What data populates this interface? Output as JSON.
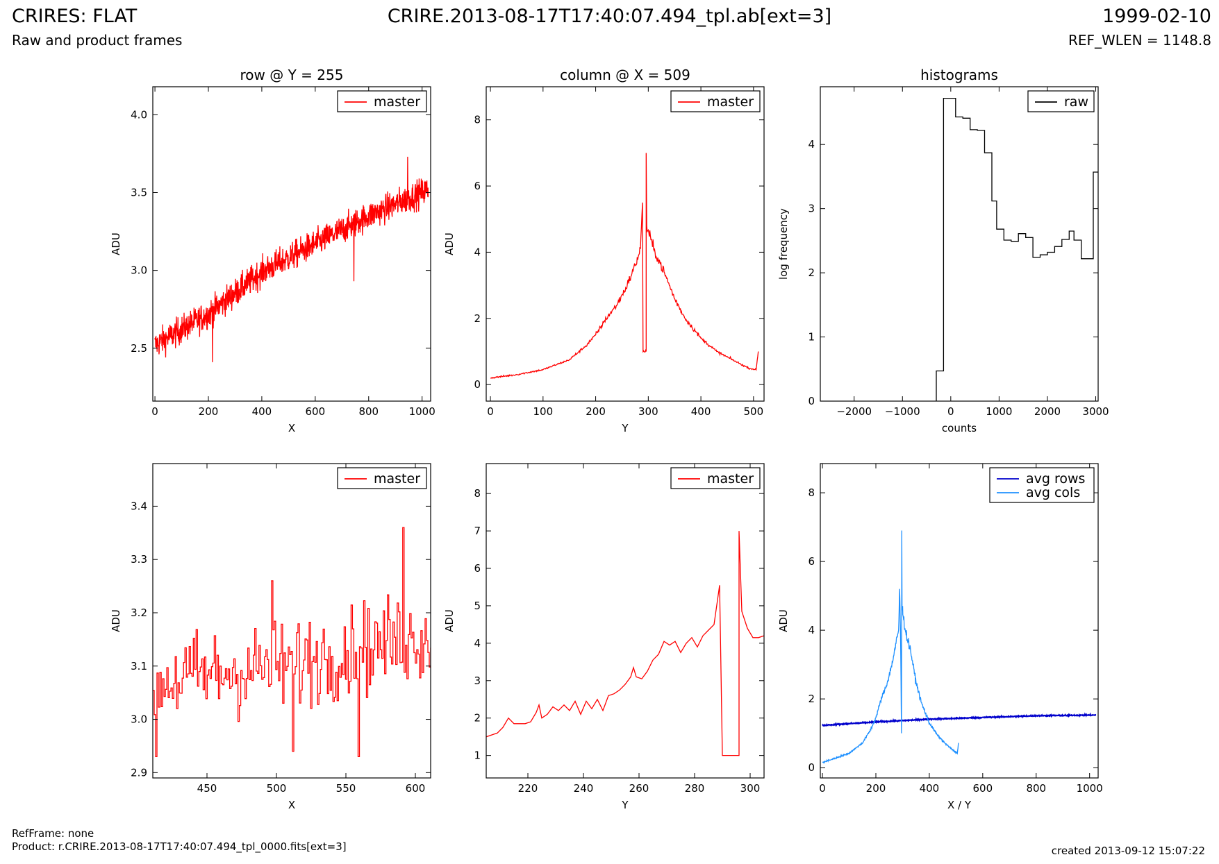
{
  "header": {
    "title_left": "CRIRES: FLAT",
    "title_center": "CRIRE.2013-08-17T17:40:07.494_tpl.ab[ext=3]",
    "title_right": "1999-02-10",
    "subtitle_left": "Raw and product frames",
    "subtitle_right": "REF_WLEN = 1148.8"
  },
  "footer": {
    "refframe": "RefFrame: none",
    "product": "Product: r.CRIRE.2013-08-17T17:40:07.494_tpl_0000.fits[ext=3]",
    "created": "created 2013-09-12 15:07:22"
  },
  "colors": {
    "red": "#ff0000",
    "black": "#000000",
    "blue": "#0000cc",
    "lightblue": "#1e90ff"
  },
  "chart_data": [
    {
      "id": "row",
      "type": "line",
      "title": "row @ Y = 255",
      "xlabel": "X",
      "ylabel": "ADU",
      "xlim": [
        -8,
        1032
      ],
      "ylim": [
        2.16,
        4.18
      ],
      "xticks": [
        0,
        200,
        400,
        600,
        800,
        1000
      ],
      "yticks": [
        2.5,
        3.0,
        3.5,
        4.0
      ],
      "ytick_labels": [
        "2.5",
        "3.0",
        "3.5",
        "4.0"
      ],
      "legend": "top-right",
      "series": [
        {
          "name": "master",
          "color": "#ff0000",
          "trend": [
            [
              0,
              2.52
            ],
            [
              200,
              2.72
            ],
            [
              400,
              2.99
            ],
            [
              600,
              3.17
            ],
            [
              800,
              3.35
            ],
            [
              1024,
              3.52
            ]
          ],
          "noise": 0.09,
          "n": 1024,
          "spikes": [
            [
              215,
              2.41
            ],
            [
              745,
              2.93
            ],
            [
              946,
              3.73
            ]
          ]
        }
      ]
    },
    {
      "id": "column",
      "type": "line",
      "title": "column @ X = 509",
      "xlabel": "Y",
      "ylabel": "ADU",
      "xlim": [
        -8,
        520
      ],
      "ylim": [
        -0.5,
        9.0
      ],
      "xticks": [
        0,
        100,
        200,
        300,
        400,
        500
      ],
      "yticks": [
        0,
        2,
        4,
        6,
        8
      ],
      "ytick_labels": [
        "0",
        "2",
        "4",
        "6",
        "8"
      ],
      "legend": "top-right",
      "series": [
        {
          "name": "master",
          "color": "#ff0000",
          "points": [
            [
              0,
              0.2
            ],
            [
              50,
              0.3
            ],
            [
              100,
              0.45
            ],
            [
              150,
              0.75
            ],
            [
              180,
              1.15
            ],
            [
              200,
              1.5
            ],
            [
              220,
              2.0
            ],
            [
              240,
              2.4
            ],
            [
              260,
              3.0
            ],
            [
              275,
              3.6
            ],
            [
              285,
              4.1
            ],
            [
              289,
              5.5
            ],
            [
              290,
              1.0
            ],
            [
              296,
              1.0
            ],
            [
              296,
              7.0
            ],
            [
              297,
              4.8
            ],
            [
              310,
              4.1
            ],
            [
              330,
              3.4
            ],
            [
              350,
              2.6
            ],
            [
              370,
              2.0
            ],
            [
              400,
              1.4
            ],
            [
              430,
              1.0
            ],
            [
              460,
              0.75
            ],
            [
              490,
              0.5
            ],
            [
              505,
              0.45
            ],
            [
              509,
              1.0
            ]
          ],
          "noise": 0.08
        }
      ]
    },
    {
      "id": "histograms",
      "type": "line",
      "title": "histograms",
      "xlabel": "counts",
      "ylabel": "log frequency",
      "xlim": [
        -2700,
        3050
      ],
      "ylim": [
        0,
        4.9
      ],
      "xticks": [
        -2000,
        -1000,
        0,
        1000,
        2000,
        3000
      ],
      "yticks": [
        0,
        1,
        2,
        3,
        4
      ],
      "ytick_labels": [
        "0",
        "1",
        "2",
        "3",
        "4"
      ],
      "legend": "top-right",
      "series": [
        {
          "name": "raw",
          "color": "#000000",
          "step": true,
          "points": [
            [
              -300,
              0
            ],
            [
              -300,
              0.47
            ],
            [
              -150,
              0.47
            ],
            [
              -150,
              4.72
            ],
            [
              -50,
              4.72
            ],
            [
              -50,
              4.72
            ],
            [
              100,
              4.72
            ],
            [
              100,
              4.43
            ],
            [
              250,
              4.43
            ],
            [
              250,
              4.41
            ],
            [
              400,
              4.41
            ],
            [
              400,
              4.23
            ],
            [
              550,
              4.23
            ],
            [
              550,
              4.22
            ],
            [
              700,
              4.22
            ],
            [
              700,
              3.87
            ],
            [
              850,
              3.87
            ],
            [
              850,
              3.12
            ],
            [
              950,
              3.12
            ],
            [
              950,
              2.68
            ],
            [
              1100,
              2.68
            ],
            [
              1100,
              2.51
            ],
            [
              1250,
              2.51
            ],
            [
              1250,
              2.49
            ],
            [
              1400,
              2.49
            ],
            [
              1400,
              2.61
            ],
            [
              1550,
              2.61
            ],
            [
              1550,
              2.55
            ],
            [
              1700,
              2.55
            ],
            [
              1700,
              2.24
            ],
            [
              1850,
              2.24
            ],
            [
              1850,
              2.28
            ],
            [
              2000,
              2.28
            ],
            [
              2000,
              2.32
            ],
            [
              2150,
              2.32
            ],
            [
              2150,
              2.41
            ],
            [
              2300,
              2.41
            ],
            [
              2300,
              2.52
            ],
            [
              2450,
              2.52
            ],
            [
              2450,
              2.65
            ],
            [
              2550,
              2.65
            ],
            [
              2550,
              2.51
            ],
            [
              2700,
              2.51
            ],
            [
              2700,
              2.22
            ],
            [
              2950,
              2.22
            ],
            [
              2950,
              3.57
            ],
            [
              3050,
              3.57
            ]
          ]
        }
      ]
    },
    {
      "id": "row_zoom",
      "type": "line",
      "title": "",
      "xlabel": "X",
      "ylabel": "ADU",
      "xlim": [
        411,
        611
      ],
      "ylim": [
        2.89,
        3.48
      ],
      "xticks": [
        450,
        500,
        550,
        600
      ],
      "yticks": [
        2.9,
        3.0,
        3.1,
        3.2,
        3.3,
        3.4
      ],
      "ytick_labels": [
        "2.9",
        "3.0",
        "3.1",
        "3.2",
        "3.3",
        "3.4"
      ],
      "legend": "top-right",
      "series": [
        {
          "name": "master",
          "color": "#ff0000",
          "step": true,
          "trend": [
            [
              411,
              3.07
            ],
            [
              500,
              3.1
            ],
            [
              611,
              3.16
            ]
          ],
          "noise": 0.085,
          "n": 200,
          "spikes": [
            [
              413,
              2.93
            ],
            [
              496,
              3.26
            ],
            [
              512,
              2.94
            ],
            [
              559,
              2.93
            ],
            [
              591,
              3.36
            ]
          ]
        }
      ]
    },
    {
      "id": "column_zoom",
      "type": "line",
      "title": "",
      "xlabel": "Y",
      "ylabel": "ADU",
      "xlim": [
        205,
        305
      ],
      "ylim": [
        0.4,
        8.8
      ],
      "xticks": [
        220,
        240,
        260,
        280,
        300
      ],
      "yticks": [
        1,
        2,
        3,
        4,
        5,
        6,
        7,
        8
      ],
      "ytick_labels": [
        "1",
        "2",
        "3",
        "4",
        "5",
        "6",
        "7",
        "8"
      ],
      "legend": "top-right",
      "series": [
        {
          "name": "master",
          "color": "#ff0000",
          "step": true,
          "points": [
            [
              205,
              1.5
            ],
            [
              207,
              1.55
            ],
            [
              209,
              1.6
            ],
            [
              211,
              1.75
            ],
            [
              213,
              2.0
            ],
            [
              215,
              1.85
            ],
            [
              217,
              1.85
            ],
            [
              219,
              1.85
            ],
            [
              221,
              1.9
            ],
            [
              223,
              2.15
            ],
            [
              224,
              2.35
            ],
            [
              225,
              2.0
            ],
            [
              227,
              2.1
            ],
            [
              229,
              2.3
            ],
            [
              231,
              2.2
            ],
            [
              233,
              2.35
            ],
            [
              235,
              2.2
            ],
            [
              237,
              2.45
            ],
            [
              239,
              2.1
            ],
            [
              241,
              2.45
            ],
            [
              243,
              2.25
            ],
            [
              245,
              2.5
            ],
            [
              247,
              2.2
            ],
            [
              249,
              2.6
            ],
            [
              251,
              2.65
            ],
            [
              253,
              2.75
            ],
            [
              255,
              2.9
            ],
            [
              257,
              3.1
            ],
            [
              258,
              3.35
            ],
            [
              259,
              3.1
            ],
            [
              261,
              3.05
            ],
            [
              263,
              3.25
            ],
            [
              265,
              3.55
            ],
            [
              267,
              3.7
            ],
            [
              269,
              4.05
            ],
            [
              271,
              3.95
            ],
            [
              273,
              4.05
            ],
            [
              275,
              3.75
            ],
            [
              277,
              4.0
            ],
            [
              279,
              4.15
            ],
            [
              281,
              3.9
            ],
            [
              283,
              4.2
            ],
            [
              285,
              4.35
            ],
            [
              287,
              4.5
            ],
            [
              289,
              5.55
            ],
            [
              290,
              1.0
            ],
            [
              296,
              1.0
            ],
            [
              296,
              7.0
            ],
            [
              297,
              4.85
            ],
            [
              299,
              4.4
            ],
            [
              301,
              4.15
            ],
            [
              303,
              4.15
            ],
            [
              305,
              4.2
            ]
          ]
        }
      ]
    },
    {
      "id": "averages",
      "type": "line",
      "title": "",
      "xlabel": "X / Y",
      "ylabel": "ADU",
      "xlim": [
        -8,
        1032
      ],
      "ylim": [
        -0.3,
        8.85
      ],
      "xticks": [
        0,
        200,
        400,
        600,
        800,
        1000
      ],
      "yticks": [
        0,
        2,
        4,
        6,
        8
      ],
      "ytick_labels": [
        "0",
        "2",
        "4",
        "6",
        "8"
      ],
      "legend": "top-right",
      "series": [
        {
          "name": "avg rows",
          "color": "#0000cc",
          "points": [
            [
              0,
              1.23
            ],
            [
              200,
              1.33
            ],
            [
              400,
              1.41
            ],
            [
              600,
              1.46
            ],
            [
              800,
              1.51
            ],
            [
              1024,
              1.53
            ]
          ],
          "noise": 0.015,
          "n": 1024
        },
        {
          "name": "avg cols",
          "color": "#1e90ff",
          "points": [
            [
              0,
              0.15
            ],
            [
              50,
              0.28
            ],
            [
              100,
              0.42
            ],
            [
              150,
              0.72
            ],
            [
              180,
              1.1
            ],
            [
              200,
              1.45
            ],
            [
              220,
              2.0
            ],
            [
              240,
              2.4
            ],
            [
              260,
              3.0
            ],
            [
              275,
              3.6
            ],
            [
              285,
              4.0
            ],
            [
              289,
              5.2
            ],
            [
              292,
              4.0
            ],
            [
              296,
              1.0
            ],
            [
              297,
              6.9
            ],
            [
              298,
              4.7
            ],
            [
              310,
              4.0
            ],
            [
              330,
              3.4
            ],
            [
              350,
              2.5
            ],
            [
              370,
              1.9
            ],
            [
              400,
              1.3
            ],
            [
              430,
              0.95
            ],
            [
              460,
              0.7
            ],
            [
              490,
              0.5
            ],
            [
              505,
              0.42
            ],
            [
              509,
              0.72
            ]
          ],
          "noise": 0.07
        }
      ]
    }
  ]
}
